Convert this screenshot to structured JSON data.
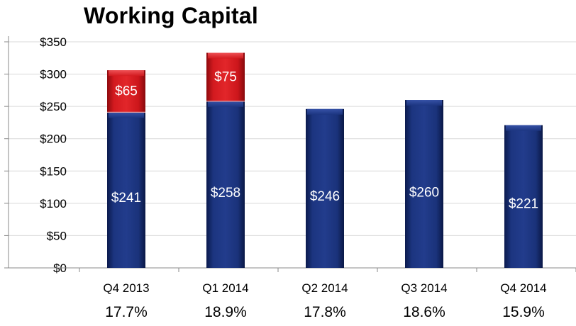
{
  "title": "Working Capital",
  "chart_data": {
    "type": "bar",
    "stacked": true,
    "title": "Working Capital",
    "xlabel": "",
    "ylabel": "",
    "ylim": [
      0,
      350
    ],
    "yticks": [
      0,
      50,
      100,
      150,
      200,
      250,
      300,
      350
    ],
    "ytick_labels": [
      "$0",
      "$50",
      "$100",
      "$150",
      "$200",
      "$250",
      "$300",
      "$350"
    ],
    "grid": true,
    "categories": [
      "Q4 2013",
      "Q1 2014",
      "Q2 2014",
      "Q3 2014",
      "Q4 2014"
    ],
    "series": [
      {
        "color": "#152a6e",
        "values": [
          241,
          258,
          246,
          260,
          221
        ],
        "labels": [
          "$241",
          "$258",
          "$246",
          "$260",
          "$221"
        ]
      },
      {
        "color": "#c8141a",
        "values": [
          65,
          75,
          0,
          0,
          0
        ],
        "labels": [
          "$65",
          "$75",
          "",
          "",
          ""
        ]
      }
    ],
    "percentages": [
      "17.7%",
      "18.9%",
      "17.8%",
      "18.6%",
      "15.9%"
    ]
  }
}
